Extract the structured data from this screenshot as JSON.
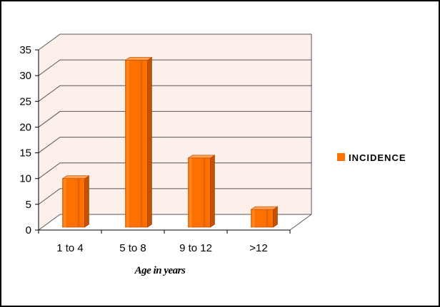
{
  "chart_data": {
    "type": "bar",
    "categories": [
      "1 to 4",
      "5 to 8",
      "9 to 12",
      ">12"
    ],
    "series": [
      {
        "name": "INCIDENCE",
        "values": [
          10,
          33,
          14,
          4
        ]
      }
    ],
    "xlabel": "Age in years",
    "ylim": [
      0,
      35
    ],
    "yticks": [
      "0",
      "5",
      "10",
      "15",
      "20",
      "25",
      "30",
      "35"
    ],
    "grid": true,
    "legend": "right",
    "colors": {
      "bar": "#ff7000",
      "bar_side": "#c45200",
      "bar_top": "#ffa050",
      "wall": "#fdf0ea",
      "grid": "#555555"
    }
  }
}
